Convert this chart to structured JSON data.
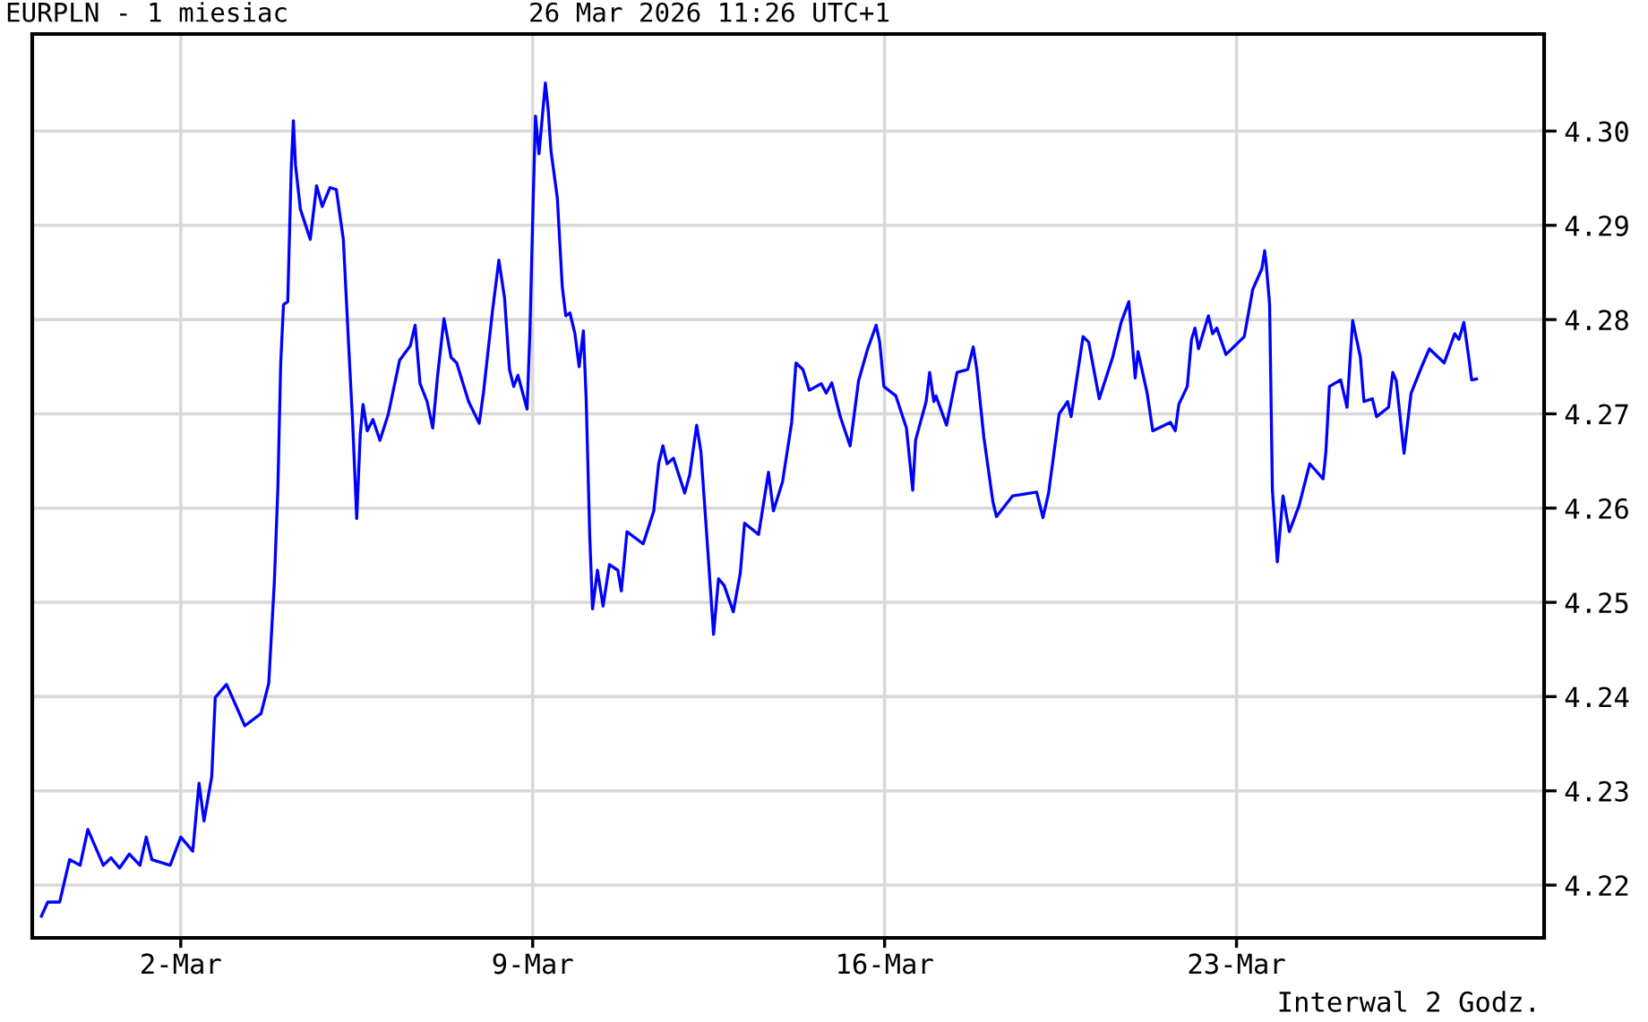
{
  "chart_data": {
    "type": "line",
    "title": "EURPLN - 1 miesiac",
    "subtitle": "26 Mar 2026 11:26 UTC+1",
    "annotations": [
      "Interwal 2 Godz."
    ],
    "x": [
      "2026-02-27T05:28",
      "2026-02-27T08:30",
      "2026-02-27T14:12",
      "2026-02-27T18:55",
      "2026-02-27T23:57",
      "2026-02-28T03:39",
      "2026-02-28T11:02",
      "2026-02-28T14:44",
      "2026-02-28T18:46",
      "2026-02-28T23:28",
      "2026-03-01T04:31",
      "2026-03-01T07:32",
      "2026-03-01T10:13",
      "2026-03-01T18:58",
      "2026-03-02T00:00",
      "2026-03-02T05:43",
      "2026-03-02T08:44",
      "2026-03-02T11:05",
      "2026-03-02T14:47",
      "2026-03-02T16:28",
      "2026-03-02T21:50",
      "2026-03-03T06:35",
      "2026-03-03T14:18",
      "2026-03-03T18:00",
      "2026-03-03T20:41",
      "2026-03-03T22:22",
      "2026-03-03T23:43",
      "2026-03-04T01:03",
      "2026-03-04T03:04",
      "2026-03-04T04:45",
      "2026-03-04T05:46",
      "2026-03-04T06:46",
      "2026-03-04T09:07",
      "2026-03-04T13:49",
      "2026-03-04T16:51",
      "2026-03-04T19:32",
      "2026-03-04T23:14",
      "2026-03-05T02:15",
      "2026-03-05T05:37",
      "2026-03-05T08:18",
      "2026-03-05T09:59",
      "2026-03-05T12:00",
      "2026-03-05T13:41",
      "2026-03-05T15:01",
      "2026-03-05T17:02",
      "2026-03-05T19:44",
      "2026-03-05T23:05",
      "2026-03-06T03:07",
      "2026-03-06T08:30",
      "2026-03-06T13:32",
      "2026-03-06T15:53",
      "2026-03-06T18:14",
      "2026-03-06T21:36",
      "2026-03-07T00:17",
      "2026-03-07T02:38",
      "2026-03-07T05:40",
      "2026-03-07T09:01",
      "2026-03-07T11:43",
      "2026-03-07T17:25",
      "2026-03-07T22:28",
      "2026-03-08T00:29",
      "2026-03-08T04:51",
      "2026-03-08T07:52",
      "2026-03-08T10:34",
      "2026-03-08T12:55",
      "2026-03-08T14:56",
      "2026-03-08T16:57",
      "2026-03-08T21:19",
      "2026-03-08T22:39",
      "2026-03-09T00:20",
      "2026-03-09T01:21",
      "2026-03-09T03:01",
      "2026-03-09T06:03",
      "2026-03-09T07:24",
      "2026-03-09T08:44",
      "2026-03-09T11:46",
      "2026-03-09T14:07",
      "2026-03-09T15:48",
      "2026-03-09T17:48",
      "2026-03-09T20:10",
      "2026-03-09T22:11",
      "2026-03-10T00:12",
      "2026-03-10T01:32",
      "2026-03-10T03:13",
      "2026-03-10T04:34",
      "2026-03-10T06:55",
      "2026-03-10T09:36",
      "2026-03-10T12:37",
      "2026-03-10T16:39",
      "2026-03-10T18:20",
      "2026-03-10T21:01",
      "2026-03-11T04:45",
      "2026-03-11T09:48",
      "2026-03-11T12:09",
      "2026-03-11T14:10",
      "2026-03-11T16:11",
      "2026-03-11T19:12",
      "2026-03-12T00:35",
      "2026-03-12T02:56",
      "2026-03-12T06:17",
      "2026-03-12T08:18",
      "2026-03-12T11:40",
      "2026-03-12T14:21",
      "2026-03-12T16:42",
      "2026-03-12T19:24",
      "2026-03-12T23:46",
      "2026-03-13T03:07",
      "2026-03-13T05:08",
      "2026-03-13T11:51",
      "2026-03-13T16:34",
      "2026-03-13T18:55",
      "2026-03-13T23:17",
      "2026-03-14T03:39",
      "2026-03-14T05:40",
      "2026-03-14T09:01",
      "2026-03-14T12:03",
      "2026-03-14T17:46",
      "2026-03-14T20:07",
      "2026-03-14T22:48",
      "2026-03-15T02:50",
      "2026-03-15T07:32",
      "2026-03-15T11:34",
      "2026-03-15T15:56",
      "2026-03-15T19:58",
      "2026-03-15T21:39",
      "2026-03-15T23:40",
      "2026-03-16T05:23",
      "2026-03-16T10:25",
      "2026-03-16T13:26",
      "2026-03-16T14:47",
      "2026-03-16T19:49",
      "2026-03-16T21:30",
      "2026-03-16T23:31",
      "2026-03-17T00:32",
      "2026-03-17T05:34",
      "2026-03-17T10:36",
      "2026-03-17T15:39",
      "2026-03-17T18:20",
      "2026-03-17T20:01",
      "2026-03-17T23:23",
      "2026-03-18T03:45",
      "2026-03-18T05:25",
      "2026-03-18T13:09",
      "2026-03-19T00:35",
      "2026-03-19T03:36",
      "2026-03-19T06:17",
      "2026-03-19T11:20",
      "2026-03-19T15:22",
      "2026-03-19T17:02",
      "2026-03-19T22:45",
      "2026-03-20T01:26",
      "2026-03-20T06:29",
      "2026-03-20T12:52",
      "2026-03-20T16:54",
      "2026-03-20T20:36",
      "2026-03-20T23:37",
      "2026-03-21T00:58",
      "2026-03-21T05:20",
      "2026-03-21T08:01",
      "2026-03-21T16:25",
      "2026-03-21T18:46",
      "2026-03-21T20:27",
      "2026-03-22T00:29",
      "2026-03-22T02:30",
      "2026-03-22T04:11",
      "2026-03-22T05:51",
      "2026-03-22T10:34",
      "2026-03-22T12:35",
      "2026-03-22T14:36",
      "2026-03-22T18:58",
      "2026-03-23T03:42",
      "2026-03-23T07:44",
      "2026-03-23T12:06",
      "2026-03-23T13:26",
      "2026-03-23T14:07",
      "2026-03-23T15:48",
      "2026-03-23T17:08",
      "2026-03-23T19:29",
      "2026-03-23T22:11",
      "2026-03-24T01:12",
      "2026-03-24T05:54",
      "2026-03-24T10:57",
      "2026-03-24T17:20",
      "2026-03-24T18:40",
      "2026-03-24T20:21",
      "2026-03-25T01:44",
      "2026-03-25T04:45",
      "2026-03-25T07:26",
      "2026-03-25T11:08",
      "2026-03-25T12:49",
      "2026-03-25T16:51",
      "2026-03-25T18:52",
      "2026-03-26T00:35",
      "2026-03-26T02:36",
      "2026-03-26T04:16",
      "2026-03-26T07:58",
      "2026-03-26T11:20",
      "2026-03-26T16:22",
      "2026-03-26T20:04",
      "2026-03-27T03:07",
      "2026-03-27T08:10",
      "2026-03-27T10:11",
      "2026-03-27T12:32",
      "2026-03-27T15:13",
      "2026-03-27T16:13",
      "2026-03-27T18:35"
    ],
    "series": [
      {
        "color": "#0000ff",
        "values": [
          4.2167,
          4.2182,
          4.2182,
          4.2227,
          4.2221,
          4.2259,
          4.2221,
          4.2229,
          4.2218,
          4.2233,
          4.2221,
          4.2251,
          4.2227,
          4.2221,
          4.2251,
          4.2236,
          4.2308,
          4.2268,
          4.2315,
          4.2399,
          4.2413,
          4.2369,
          4.2382,
          4.2414,
          4.2522,
          4.2622,
          4.2754,
          4.2816,
          4.2819,
          4.2961,
          4.3011,
          4.2964,
          4.2917,
          4.2885,
          4.2942,
          4.292,
          4.294,
          4.2938,
          4.2885,
          4.2766,
          4.2694,
          4.2589,
          4.2678,
          4.271,
          4.2682,
          4.2694,
          4.2672,
          4.27,
          4.2757,
          4.2772,
          4.2794,
          4.2732,
          4.2713,
          4.2685,
          4.2741,
          4.2801,
          4.276,
          4.2754,
          4.2713,
          4.269,
          4.2722,
          4.281,
          4.2863,
          4.2823,
          4.2747,
          4.2729,
          4.2741,
          4.2705,
          4.2785,
          4.2935,
          4.3016,
          4.2976,
          4.3051,
          4.3023,
          4.2979,
          4.2929,
          4.2835,
          4.2804,
          4.2807,
          4.2785,
          4.275,
          4.2788,
          4.2716,
          4.2572,
          4.2493,
          4.2534,
          4.2496,
          4.254,
          4.2534,
          4.2512,
          4.2575,
          4.2562,
          4.2597,
          4.2647,
          4.2666,
          4.2647,
          4.2653,
          4.2616,
          4.2635,
          4.2688,
          4.266,
          4.2553,
          4.2466,
          4.2525,
          4.2518,
          4.249,
          4.2531,
          4.2584,
          4.2572,
          4.2638,
          4.2597,
          4.2628,
          4.2691,
          4.2754,
          4.2747,
          4.2725,
          4.2732,
          4.2722,
          4.2733,
          4.2697,
          4.2666,
          4.2735,
          4.2769,
          4.2794,
          4.2776,
          4.2729,
          4.2719,
          4.2685,
          4.2619,
          4.2672,
          4.2713,
          4.2744,
          4.2713,
          4.2719,
          4.2688,
          4.2744,
          4.2747,
          4.2771,
          4.2747,
          4.2675,
          4.2606,
          4.2591,
          4.2613,
          4.2617,
          4.259,
          4.2616,
          4.27,
          4.2713,
          4.2697,
          4.2782,
          4.2776,
          4.2716,
          4.276,
          4.2797,
          4.2819,
          4.2738,
          4.2766,
          4.2722,
          4.2682,
          4.2691,
          4.2682,
          4.271,
          4.2729,
          4.2779,
          4.2791,
          4.2769,
          4.2804,
          4.2785,
          4.2791,
          4.2763,
          4.2782,
          4.2832,
          4.2854,
          4.2873,
          4.286,
          4.2816,
          4.2619,
          4.2543,
          4.2613,
          4.2575,
          4.2603,
          4.2647,
          4.2631,
          4.266,
          4.2729,
          4.2736,
          4.2707,
          4.2799,
          4.276,
          4.2713,
          4.2716,
          4.2697,
          4.2707,
          4.2744,
          4.2735,
          4.2658,
          4.2722,
          4.275,
          4.2769,
          4.2754,
          4.2785,
          4.2779,
          4.2797,
          4.2754,
          4.2736,
          4.2737
        ]
      }
    ],
    "xlim": [
      "2026-02-27T01:06",
      "2026-03-29T02:50"
    ],
    "xticks": [
      {
        "value": "2026-03-02",
        "label": "2-Mar"
      },
      {
        "value": "2026-03-09",
        "label": "9-Mar"
      },
      {
        "value": "2026-03-16",
        "label": "16-Mar"
      },
      {
        "value": "2026-03-23",
        "label": "23-Mar"
      }
    ],
    "ylim": [
      4.2144,
      4.3103
    ],
    "yticks": [
      4.22,
      4.23,
      4.24,
      4.25,
      4.26,
      4.27,
      4.28,
      4.29,
      {
        "value": 4.3,
        "label": "4.30"
      }
    ],
    "grid": true
  }
}
